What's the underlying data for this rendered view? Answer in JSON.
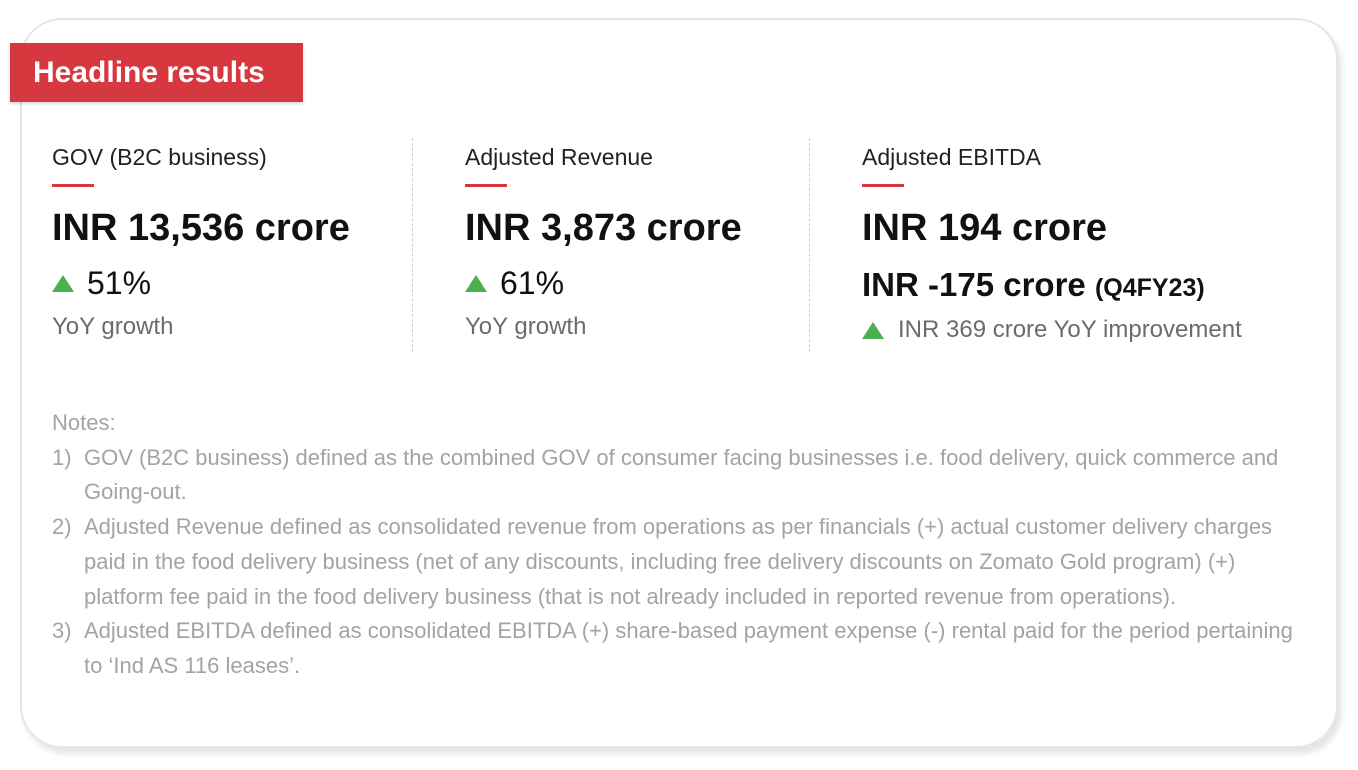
{
  "banner": {
    "title": "Headline results"
  },
  "metrics": [
    {
      "label": "GOV (B2C business)",
      "value": "INR 13,536 crore",
      "growth": "51%",
      "growth_label": "YoY growth"
    },
    {
      "label": "Adjusted Revenue",
      "value": "INR 3,873 crore",
      "growth": "61%",
      "growth_label": "YoY growth"
    },
    {
      "label": "Adjusted EBITDA",
      "value": "INR 194 crore",
      "prior_value": "INR -175 crore",
      "prior_period": "(Q4FY23)",
      "improvement": "INR 369 crore YoY improvement"
    }
  ],
  "colors": {
    "accent_red": "#d7383f",
    "up_green": "#4caf50"
  },
  "notes": {
    "heading": "Notes:",
    "items": [
      {
        "num": "1)",
        "text": "GOV (B2C business) defined as the combined GOV of consumer facing businesses i.e. food delivery, quick commerce and Going-out."
      },
      {
        "num": "2)",
        "text": "Adjusted Revenue defined as consolidated revenue from operations as per financials (+) actual customer delivery charges paid in the food delivery business (net of any discounts, including free delivery discounts on Zomato Gold program) (+) platform fee paid in the food delivery business (that is not already included in reported revenue from operations)."
      },
      {
        "num": "3)",
        "text": "Adjusted EBITDA defined as consolidated EBITDA (+) share-based payment expense (-) rental paid for the period pertaining to ‘Ind AS 116 leases’."
      }
    ]
  }
}
